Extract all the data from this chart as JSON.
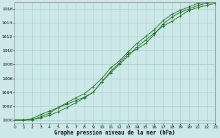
{
  "title": "Graphe pression niveau de la mer (hPa)",
  "background_color": "#cce8e8",
  "grid_color": "#aacccc",
  "line_color": "#1a6e1a",
  "xlim": [
    0,
    23
  ],
  "ylim": [
    999.5,
    1017.0
  ],
  "yticks": [
    1000,
    1002,
    1004,
    1006,
    1008,
    1010,
    1012,
    1014,
    1016
  ],
  "xticks": [
    0,
    1,
    2,
    3,
    4,
    5,
    6,
    7,
    8,
    9,
    10,
    11,
    12,
    13,
    14,
    15,
    16,
    17,
    18,
    19,
    20,
    21,
    22,
    23
  ],
  "hours": [
    0,
    1,
    2,
    3,
    4,
    5,
    6,
    7,
    8,
    9,
    10,
    11,
    12,
    13,
    14,
    15,
    16,
    17,
    18,
    19,
    20,
    21,
    22,
    23
  ],
  "series1": [
    1000.0,
    1000.0,
    1000.2,
    1000.8,
    1001.3,
    1001.8,
    1002.3,
    1002.8,
    1003.3,
    1004.0,
    1005.5,
    1006.8,
    1008.0,
    1009.2,
    1010.5,
    1011.5,
    1012.5,
    1013.5,
    1014.2,
    1015.0,
    1015.8,
    1016.2,
    1016.5,
    1016.8
  ],
  "series2": [
    1000.0,
    1000.0,
    1000.1,
    1000.3,
    1000.7,
    1001.2,
    1001.8,
    1002.5,
    1003.2,
    1004.0,
    1005.5,
    1007.0,
    1008.2,
    1009.5,
    1010.2,
    1011.0,
    1012.3,
    1013.8,
    1014.8,
    1015.5,
    1016.0,
    1016.5,
    1016.8,
    1017.0
  ],
  "series3": [
    1000.0,
    1000.0,
    1000.0,
    1000.5,
    1001.0,
    1001.8,
    1002.5,
    1003.2,
    1003.8,
    1004.8,
    1006.0,
    1007.5,
    1008.5,
    1009.8,
    1011.0,
    1012.0,
    1013.0,
    1014.3,
    1015.2,
    1015.8,
    1016.3,
    1016.8,
    1017.0,
    1017.2
  ]
}
